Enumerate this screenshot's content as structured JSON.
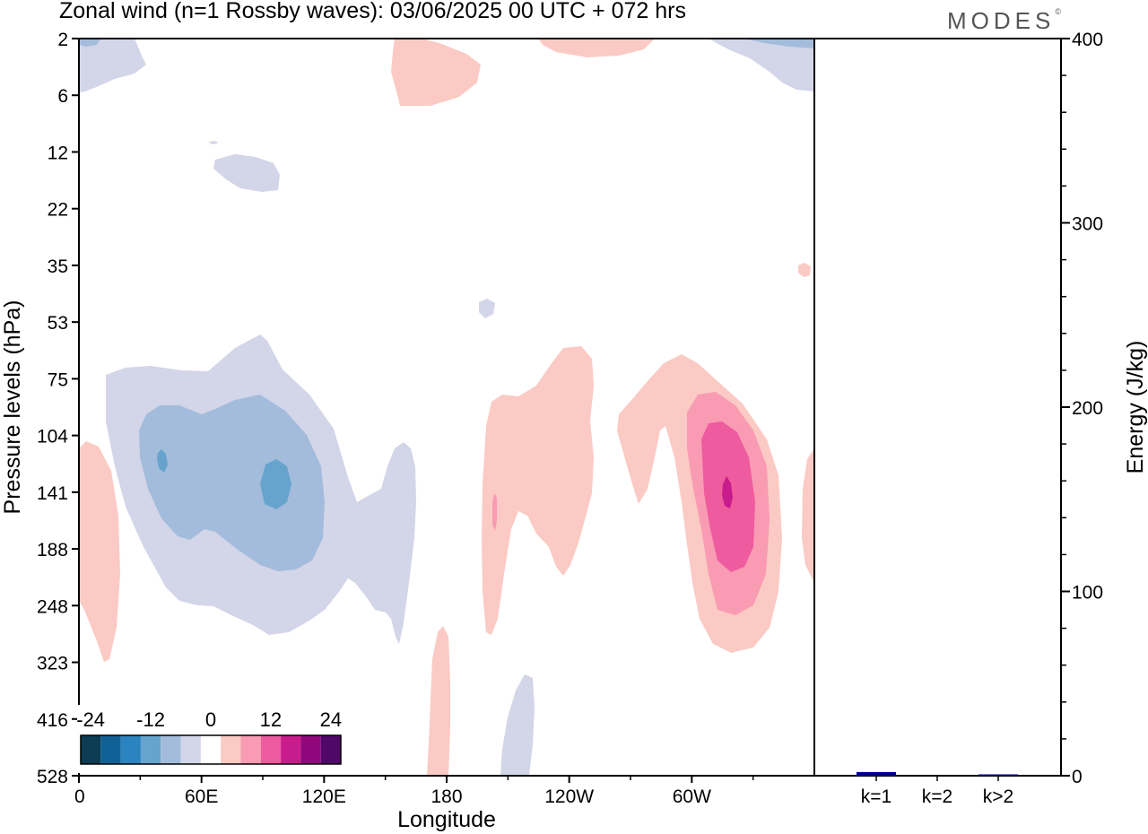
{
  "title": "Zonal wind (n=1 Rossby waves):  03/06/2025  00 UTC  + 072 hrs",
  "logo_text": "MODES",
  "logo_mark": "©",
  "chart_data": [
    {
      "type": "heatmap",
      "xlabel": "Longitude",
      "ylabel": "Pressure levels (hPa)",
      "x_ticks": [
        "0",
        "60E",
        "120E",
        "180",
        "120W",
        "60W"
      ],
      "x_range_deg_east": [
        0,
        360
      ],
      "y_ticks": [
        "2",
        "6",
        "12",
        "22",
        "35",
        "53",
        "75",
        "104",
        "141",
        "188",
        "248",
        "323",
        "416",
        "528"
      ],
      "y_scale": "log",
      "y_reversed": true,
      "colorbar": {
        "labels": [
          "-24",
          "-12",
          "0",
          "12",
          "24"
        ],
        "colors": [
          "#0d3c55",
          "#0f6196",
          "#2b84c0",
          "#66a3cd",
          "#a3bcdb",
          "#d3d5e8",
          "#ffffff",
          "#fbcac4",
          "#f99bb3",
          "#ee5b9f",
          "#c81c8c",
          "#8f077b",
          "#4f0868"
        ]
      },
      "features": [
        {
          "sign": "negative",
          "lon": 60,
          "pressure": 141,
          "peak": -12,
          "level_index": 3
        },
        {
          "sign": "negative",
          "lon": 40,
          "pressure": 118,
          "peak": -12,
          "level_index": 3
        },
        {
          "sign": "positive",
          "lon": 313,
          "pressure": 138,
          "peak": 15,
          "level_index": 11
        },
        {
          "sign": "positive",
          "lon": 200,
          "pressure": 150,
          "peak": 6,
          "level_index": 8
        },
        {
          "sign": "negative",
          "lon": 20,
          "pressure": 3,
          "peak": -3,
          "level_index": 5
        },
        {
          "sign": "positive",
          "lon": 160,
          "pressure": 4,
          "peak": 3,
          "level_index": 7
        }
      ]
    },
    {
      "type": "bar",
      "ylabel": "Energy (J/kg)",
      "categories": [
        "k=1",
        "k=2",
        "k>2"
      ],
      "values": [
        2,
        0,
        0.5
      ],
      "ylim": [
        0,
        400
      ],
      "y_ticks": [
        "0",
        "100",
        "200",
        "300",
        "400"
      ],
      "bar_color": "#00008b"
    }
  ]
}
